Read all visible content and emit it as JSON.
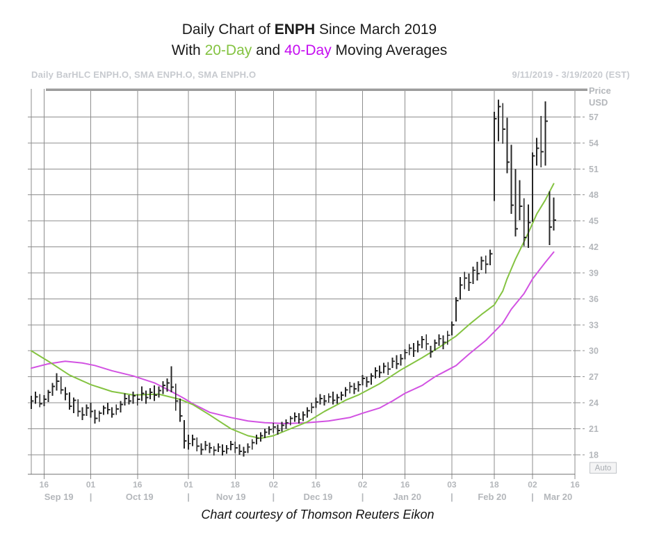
{
  "title": {
    "line1_prefix": "Daily Chart of ",
    "symbol": "ENPH",
    "line1_suffix": " Since March 2019",
    "line2_prefix": "With ",
    "ma20_label": "20-Day",
    "line2_and": " and ",
    "ma40_label": "40-Day",
    "line2_suffix": " Moving Averages"
  },
  "header": {
    "left": "Daily BarHLC ENPH.O, SMA ENPH.O, SMA ENPH.O",
    "right": "9/11/2019 - 3/19/2020 (EST)"
  },
  "caption": "Chart courtesy of Thomson Reuters Eikon",
  "colors": {
    "ma20": "#84c341",
    "ma40_title": "#c50df0",
    "ma40_line": "#d252e2",
    "bars": "#262626",
    "grid": "#8d8d8d",
    "axis_line": "#6f6f6f",
    "top_border": "#9c9c9c",
    "axis_text": "#b4b7bb",
    "auto_text": "#a9adb2",
    "auto_border": "#c2c5c9",
    "auto_fill": "#f4f4f5"
  },
  "chart_data": {
    "type": "hlc-bar",
    "series_note": "Daily High-Low-Close bars of ENPH.O with 20-day and 40-day simple moving averages",
    "price_axis": {
      "title": [
        "Price",
        "USD"
      ],
      "ticks": [
        57,
        54,
        51,
        48,
        45,
        42,
        39,
        36,
        33,
        30,
        27,
        24,
        21,
        18
      ],
      "auto_button": "Auto"
    },
    "time_axis": {
      "domain_days": 131,
      "ticks": [
        {
          "label": "16",
          "i": 3
        },
        {
          "label": "01",
          "i": 14
        },
        {
          "label": "16",
          "i": 25
        },
        {
          "label": "01",
          "i": 37
        },
        {
          "label": "18",
          "i": 48
        },
        {
          "label": "02",
          "i": 57
        },
        {
          "label": "16",
          "i": 67
        },
        {
          "label": "02",
          "i": 78
        },
        {
          "label": "16",
          "i": 88
        },
        {
          "label": "03",
          "i": 99
        },
        {
          "label": "18",
          "i": 109
        },
        {
          "label": "02",
          "i": 118
        },
        {
          "label": "16",
          "i": 128
        }
      ],
      "months": [
        {
          "label": "Sep 19",
          "i": 6.5
        },
        {
          "label": "Oct 19",
          "i": 25.5
        },
        {
          "label": "Nov 19",
          "i": 47
        },
        {
          "label": "Dec 19",
          "i": 67.5
        },
        {
          "label": "Jan 20",
          "i": 88.5
        },
        {
          "label": "Feb 20",
          "i": 108.5
        },
        {
          "label": "Mar 20",
          "i": 124
        }
      ],
      "separators": [
        14,
        37,
        57,
        78,
        99,
        118
      ],
      "separator_glyph": "|"
    },
    "bars": [
      [
        "9/11",
        24.8,
        23.3,
        24.2
      ],
      [
        "9/12",
        25.3,
        23.9,
        24.7
      ],
      [
        "9/13",
        25.0,
        23.5,
        23.9
      ],
      [
        "9/16",
        24.9,
        23.6,
        24.4
      ],
      [
        "9/17",
        25.5,
        24.1,
        25.2
      ],
      [
        "9/18",
        26.3,
        24.8,
        25.9
      ],
      [
        "9/19",
        27.4,
        25.4,
        26.5
      ],
      [
        "9/20",
        27.0,
        25.0,
        25.5
      ],
      [
        "9/23",
        25.8,
        24.3,
        25.0
      ],
      [
        "9/24",
        25.2,
        23.2,
        23.6
      ],
      [
        "9/25",
        24.6,
        22.8,
        24.3
      ],
      [
        "9/26",
        24.4,
        22.4,
        23.0
      ],
      [
        "9/27",
        23.5,
        22.0,
        22.6
      ],
      [
        "9/30",
        23.8,
        22.5,
        23.4
      ],
      [
        "10/1",
        24.0,
        22.3,
        23.0
      ],
      [
        "10/2",
        23.2,
        21.6,
        22.2
      ],
      [
        "10/3",
        23.1,
        21.8,
        22.8
      ],
      [
        "10/4",
        23.7,
        22.6,
        23.4
      ],
      [
        "10/7",
        24.0,
        22.7,
        23.2
      ],
      [
        "10/8",
        23.5,
        22.3,
        22.7
      ],
      [
        "10/9",
        23.8,
        22.6,
        23.3
      ],
      [
        "10/10",
        24.2,
        22.9,
        23.8
      ],
      [
        "10/11",
        25.1,
        23.7,
        24.5
      ],
      [
        "10/14",
        24.9,
        23.8,
        24.2
      ],
      [
        "10/15",
        25.3,
        23.9,
        24.8
      ],
      [
        "10/16",
        25.0,
        23.7,
        24.4
      ],
      [
        "10/17",
        25.9,
        24.2,
        25.1
      ],
      [
        "10/18",
        25.4,
        23.9,
        24.6
      ],
      [
        "10/21",
        25.7,
        24.4,
        25.2
      ],
      [
        "10/22",
        26.0,
        24.2,
        24.9
      ],
      [
        "10/23",
        25.9,
        24.6,
        25.4
      ],
      [
        "10/24",
        26.5,
        25.0,
        26.0
      ],
      [
        "10/25",
        26.8,
        25.3,
        26.3
      ],
      [
        "10/28",
        28.2,
        25.2,
        25.8
      ],
      [
        "10/29",
        26.2,
        23.1,
        24.2
      ],
      [
        "10/30",
        24.5,
        21.8,
        22.5
      ],
      [
        "10/31",
        22.0,
        18.7,
        19.6
      ],
      [
        "11/1",
        20.3,
        18.6,
        19.3
      ],
      [
        "11/4",
        20.3,
        19.0,
        19.8
      ],
      [
        "11/5",
        20.0,
        18.4,
        19.0
      ],
      [
        "11/6",
        19.3,
        18.0,
        18.6
      ],
      [
        "11/7",
        19.6,
        18.5,
        19.1
      ],
      [
        "11/8",
        19.4,
        18.2,
        18.8
      ],
      [
        "11/11",
        19.0,
        17.9,
        18.5
      ],
      [
        "11/12",
        19.3,
        18.3,
        18.9
      ],
      [
        "11/13",
        19.2,
        17.9,
        18.4
      ],
      [
        "11/14",
        19.1,
        18.1,
        18.7
      ],
      [
        "11/15",
        19.6,
        18.5,
        19.2
      ],
      [
        "11/18",
        19.5,
        18.2,
        18.8
      ],
      [
        "11/19",
        19.2,
        18.0,
        18.4
      ],
      [
        "11/20",
        18.9,
        17.8,
        18.3
      ],
      [
        "11/21",
        19.3,
        18.2,
        18.9
      ],
      [
        "11/22",
        19.8,
        18.6,
        19.4
      ],
      [
        "11/25",
        20.3,
        19.2,
        19.9
      ],
      [
        "11/26",
        20.6,
        19.5,
        20.2
      ],
      [
        "11/27",
        21.0,
        19.9,
        20.6
      ],
      [
        "11/29",
        21.3,
        20.3,
        20.9
      ],
      [
        "12/2",
        21.7,
        20.5,
        21.2
      ],
      [
        "12/3",
        21.5,
        20.3,
        20.8
      ],
      [
        "12/4",
        21.8,
        20.7,
        21.4
      ],
      [
        "12/5",
        22.1,
        21.0,
        21.7
      ],
      [
        "12/6",
        22.5,
        21.4,
        22.2
      ],
      [
        "12/9",
        22.9,
        21.8,
        22.4
      ],
      [
        "12/10",
        22.8,
        21.6,
        22.1
      ],
      [
        "12/11",
        23.0,
        21.9,
        22.6
      ],
      [
        "12/12",
        23.5,
        22.3,
        23.1
      ],
      [
        "12/13",
        24.0,
        22.8,
        23.5
      ],
      [
        "12/16",
        24.6,
        23.4,
        24.1
      ],
      [
        "12/17",
        25.0,
        23.8,
        24.5
      ],
      [
        "12/18",
        24.9,
        23.7,
        24.2
      ],
      [
        "12/19",
        25.1,
        24.0,
        24.7
      ],
      [
        "12/20",
        25.3,
        23.8,
        24.3
      ],
      [
        "12/23",
        25.0,
        23.9,
        24.6
      ],
      [
        "12/24",
        25.3,
        24.3,
        24.9
      ],
      [
        "12/26",
        25.8,
        24.7,
        25.5
      ],
      [
        "12/27",
        26.4,
        25.1,
        25.9
      ],
      [
        "12/30",
        26.3,
        25.0,
        25.6
      ],
      [
        "12/31",
        26.5,
        25.3,
        26.1
      ],
      [
        "1/2",
        27.2,
        26.0,
        26.8
      ],
      [
        "1/3",
        27.0,
        25.8,
        26.4
      ],
      [
        "1/6",
        27.4,
        26.1,
        27.1
      ],
      [
        "1/7",
        28.1,
        26.8,
        27.7
      ],
      [
        "1/8",
        28.3,
        26.9,
        27.5
      ],
      [
        "1/9",
        28.6,
        27.4,
        28.2
      ],
      [
        "1/10",
        28.7,
        27.2,
        27.9
      ],
      [
        "1/13",
        29.2,
        28.0,
        28.8
      ],
      [
        "1/14",
        29.5,
        27.9,
        28.5
      ],
      [
        "1/15",
        29.6,
        28.3,
        29.1
      ],
      [
        "1/16",
        30.2,
        29.0,
        29.8
      ],
      [
        "1/17",
        30.8,
        29.5,
        30.3
      ],
      [
        "1/21",
        30.9,
        29.3,
        30.0
      ],
      [
        "1/22",
        31.2,
        29.8,
        30.7
      ],
      [
        "1/23",
        31.7,
        30.3,
        31.3
      ],
      [
        "1/24",
        31.9,
        30.1,
        30.8
      ],
      [
        "1/27",
        30.6,
        29.2,
        29.9
      ],
      [
        "1/28",
        31.3,
        30.0,
        30.9
      ],
      [
        "1/29",
        31.9,
        30.6,
        31.4
      ],
      [
        "1/30",
        31.8,
        30.2,
        31.0
      ],
      [
        "1/31",
        32.3,
        30.7,
        31.8
      ],
      [
        "2/3",
        33.4,
        31.8,
        33.0
      ],
      [
        "2/4",
        36.2,
        33.4,
        35.8
      ],
      [
        "2/5",
        38.5,
        35.9,
        37.6
      ],
      [
        "2/6",
        39.1,
        37.1,
        38.4
      ],
      [
        "2/7",
        38.9,
        36.9,
        37.9
      ],
      [
        "2/10",
        39.7,
        37.7,
        39.3
      ],
      [
        "2/11",
        40.3,
        38.1,
        38.9
      ],
      [
        "2/12",
        40.9,
        39.3,
        40.4
      ],
      [
        "2/13",
        41.0,
        38.9,
        40.0
      ],
      [
        "2/14",
        41.7,
        39.9,
        41.2
      ],
      [
        "2/18",
        57.6,
        47.3,
        56.8
      ],
      [
        "2/19",
        59.0,
        54.2,
        58.2
      ],
      [
        "2/20",
        58.6,
        53.9,
        55.6
      ],
      [
        "2/21",
        56.9,
        50.5,
        51.8
      ],
      [
        "2/24",
        53.8,
        45.8,
        46.8
      ],
      [
        "2/25",
        51.0,
        43.2,
        44.1
      ],
      [
        "2/26",
        49.7,
        45.1,
        46.7
      ],
      [
        "2/27",
        47.6,
        42.1,
        43.1
      ],
      [
        "2/28",
        46.9,
        41.9,
        44.8
      ],
      [
        "3/2",
        52.9,
        44.9,
        52.5
      ],
      [
        "3/3",
        54.6,
        51.4,
        53.4
      ],
      [
        "3/4",
        57.1,
        51.2,
        53.0
      ],
      [
        "3/5",
        58.8,
        51.4,
        56.5
      ],
      [
        "3/6",
        48.4,
        42.2,
        44.3
      ],
      [
        "3/9",
        47.7,
        43.9,
        45.1
      ]
    ],
    "ma20_keypoints": [
      [
        0,
        30.0
      ],
      [
        4,
        28.8
      ],
      [
        9,
        27.2
      ],
      [
        14,
        26.1
      ],
      [
        19,
        25.3
      ],
      [
        24,
        24.9
      ],
      [
        30,
        25.0
      ],
      [
        35,
        24.4
      ],
      [
        38,
        23.8
      ],
      [
        42,
        22.6
      ],
      [
        47,
        21.0
      ],
      [
        51,
        20.2
      ],
      [
        54,
        19.9
      ],
      [
        57,
        20.2
      ],
      [
        61,
        21.0
      ],
      [
        65,
        21.8
      ],
      [
        69,
        23.0
      ],
      [
        74,
        24.3
      ],
      [
        77,
        24.9
      ],
      [
        82,
        26.2
      ],
      [
        87,
        27.8
      ],
      [
        92,
        29.2
      ],
      [
        96,
        30.4
      ],
      [
        100,
        31.7
      ],
      [
        103,
        33.0
      ],
      [
        106,
        34.2
      ],
      [
        109,
        35.3
      ],
      [
        111,
        36.9
      ],
      [
        112,
        38.3
      ],
      [
        114,
        40.6
      ],
      [
        117,
        43.6
      ],
      [
        119,
        45.8
      ],
      [
        121,
        47.4
      ],
      [
        123,
        49.3
      ]
    ],
    "ma40_keypoints": [
      [
        0,
        28.0
      ],
      [
        4,
        28.5
      ],
      [
        8,
        28.8
      ],
      [
        12,
        28.6
      ],
      [
        15,
        28.3
      ],
      [
        19,
        27.7
      ],
      [
        24,
        27.1
      ],
      [
        29,
        26.3
      ],
      [
        33,
        25.3
      ],
      [
        36,
        24.5
      ],
      [
        38,
        23.9
      ],
      [
        42,
        22.9
      ],
      [
        47,
        22.3
      ],
      [
        51,
        21.9
      ],
      [
        55,
        21.7
      ],
      [
        60,
        21.6
      ],
      [
        65,
        21.7
      ],
      [
        70,
        21.9
      ],
      [
        75,
        22.3
      ],
      [
        78,
        22.8
      ],
      [
        82,
        23.4
      ],
      [
        85,
        24.2
      ],
      [
        88,
        25.1
      ],
      [
        92,
        26.0
      ],
      [
        95,
        27.0
      ],
      [
        100,
        28.3
      ],
      [
        103,
        29.6
      ],
      [
        107,
        31.2
      ],
      [
        109,
        32.2
      ],
      [
        111,
        33.2
      ],
      [
        113,
        34.8
      ],
      [
        116,
        36.6
      ],
      [
        118,
        38.3
      ],
      [
        121,
        40.2
      ],
      [
        123,
        41.4
      ]
    ]
  }
}
